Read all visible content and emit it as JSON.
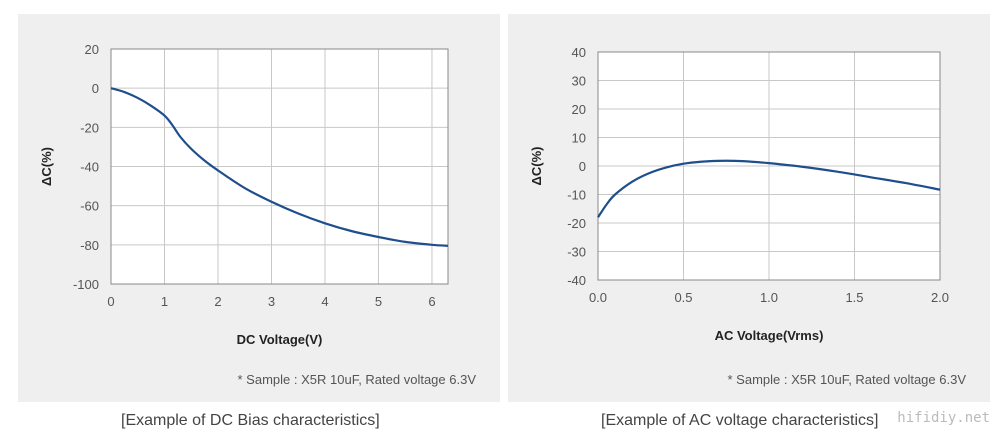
{
  "chart_data": [
    {
      "type": "line",
      "title": "",
      "xlabel": "DC Voltage(V)",
      "ylabel": "ΔC(%)",
      "xlim": [
        0,
        6.3
      ],
      "ylim": [
        -100,
        20
      ],
      "xticks": [
        0,
        1,
        2,
        3,
        4,
        5,
        6
      ],
      "yticks": [
        20,
        0,
        -20,
        -40,
        -60,
        -80,
        -100
      ],
      "xtick_labels": [
        "0",
        "1",
        "2",
        "3",
        "4",
        "5",
        "6"
      ],
      "ytick_labels": [
        "20",
        "0",
        "-20",
        "-40",
        "-60",
        "-80",
        "-100"
      ],
      "grid": true,
      "series": [
        {
          "name": "X5R 10uF",
          "color": "#1f4e8c",
          "x": [
            0,
            0.25,
            0.5,
            0.75,
            1.0,
            1.15,
            1.3,
            1.5,
            1.75,
            2.0,
            2.5,
            3.0,
            3.5,
            4.0,
            4.5,
            5.0,
            5.5,
            6.0,
            6.3
          ],
          "y": [
            0,
            -2,
            -5,
            -9,
            -14,
            -19,
            -25,
            -31,
            -37,
            -42,
            -51,
            -58,
            -64,
            -69,
            -73,
            -76,
            -78.5,
            -80,
            -80.5
          ]
        }
      ],
      "note": "* Sample : X5R 10uF, Rated voltage 6.3V",
      "caption": "[Example of DC Bias characteristics]"
    },
    {
      "type": "line",
      "title": "",
      "xlabel": "AC Voltage(Vrms)",
      "ylabel": "ΔC(%)",
      "xlim": [
        0,
        2.0
      ],
      "ylim": [
        -40,
        40
      ],
      "xticks": [
        0,
        0.5,
        1.0,
        1.5,
        2.0
      ],
      "yticks": [
        40,
        30,
        20,
        10,
        0,
        -10,
        -20,
        -30,
        -40
      ],
      "xtick_labels": [
        "0.0",
        "0.5",
        "1.0",
        "1.5",
        "2.0"
      ],
      "ytick_labels": [
        "40",
        "30",
        "20",
        "10",
        "0",
        "-10",
        "-20",
        "-30",
        "-40"
      ],
      "grid": true,
      "series": [
        {
          "name": "X5R 10uF",
          "color": "#1f4e8c",
          "x": [
            0,
            0.05,
            0.1,
            0.2,
            0.3,
            0.4,
            0.5,
            0.6,
            0.7,
            0.8,
            0.9,
            1.0,
            1.2,
            1.4,
            1.6,
            1.8,
            2.0
          ],
          "y": [
            -18,
            -13.5,
            -10,
            -5.5,
            -2.5,
            -0.5,
            0.8,
            1.5,
            1.8,
            1.8,
            1.5,
            1.0,
            -0.3,
            -2.0,
            -4.0,
            -6.0,
            -8.3
          ]
        }
      ],
      "note": "* Sample : X5R 10uF, Rated voltage 6.3V",
      "caption": "[Example of AC voltage characteristics]"
    }
  ],
  "watermark": "hifidiy.net"
}
